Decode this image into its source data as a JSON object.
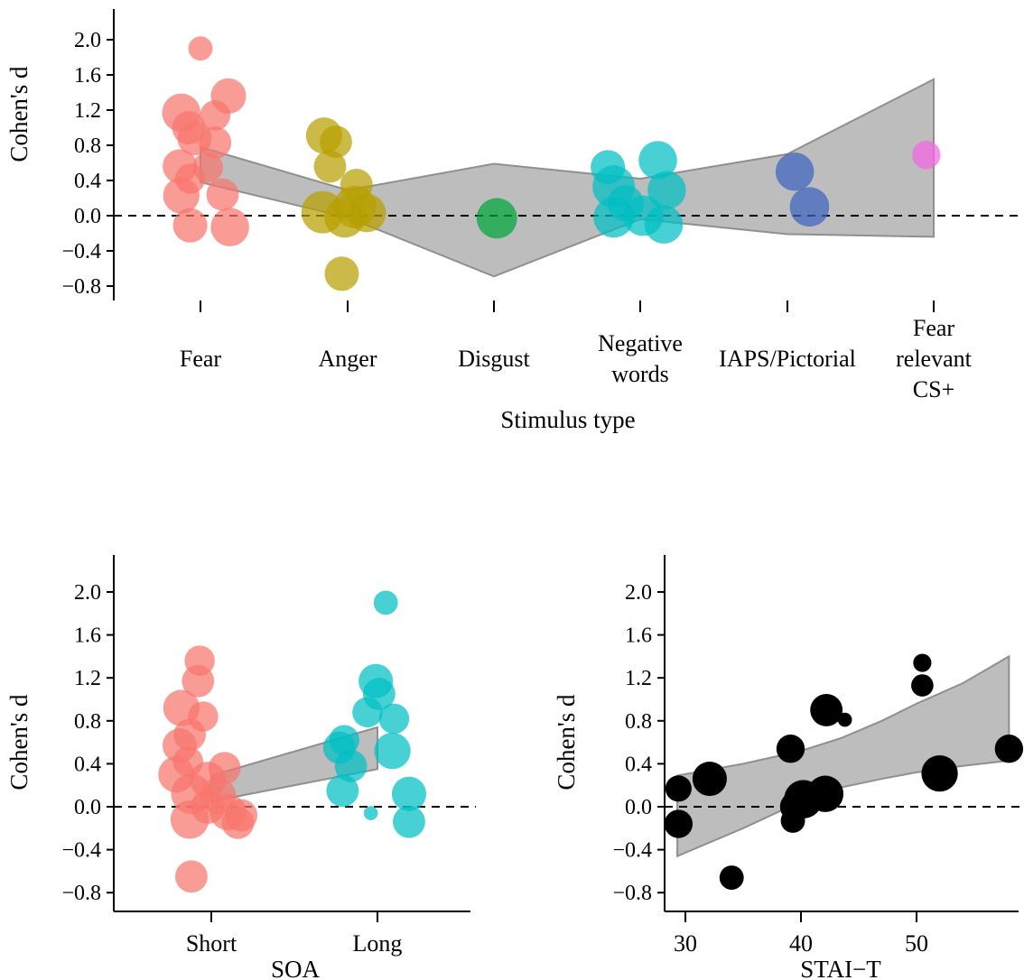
{
  "chart_data": [
    {
      "type": "scatter",
      "xlabel": "Stimulus type",
      "ylabel": "Cohen's d",
      "ylim": [
        -0.9,
        2.2
      ],
      "yticks": [
        "2.0",
        "1.6",
        "1.2",
        "0.8",
        "0.4",
        "0.0",
        "−0.4",
        "−0.8"
      ],
      "ytick_values": [
        2.0,
        1.6,
        1.2,
        0.8,
        0.4,
        0.0,
        -0.4,
        -0.8
      ],
      "categories": [
        {
          "lines": [
            "Fear"
          ]
        },
        {
          "lines": [
            "Anger"
          ]
        },
        {
          "lines": [
            "Disgust"
          ]
        },
        {
          "lines": [
            "Negative",
            "words"
          ]
        },
        {
          "lines": [
            "IAPS/Pictorial"
          ]
        },
        {
          "lines": [
            "Fear",
            "relevant",
            "CS+"
          ]
        }
      ],
      "colors": [
        "#F8766D",
        "#B79F00",
        "#00A63A",
        "#00BFC4",
        "#3F62C0",
        "#F564E3"
      ],
      "reference_line": 0.0,
      "band": {
        "upper": [
          0.78,
          0.29,
          0.59,
          0.42,
          0.7,
          1.55
        ],
        "lower": [
          0.38,
          -0.02,
          -0.69,
          -0.04,
          -0.21,
          -0.24
        ]
      },
      "points": [
        {
          "cat": 0,
          "dx": 0.0,
          "y": 1.9,
          "size": 2.4
        },
        {
          "cat": 0,
          "dx": 0.19,
          "y": 1.36,
          "size": 3.5
        },
        {
          "cat": 0,
          "dx": -0.13,
          "y": 1.17,
          "size": 3.8
        },
        {
          "cat": 0,
          "dx": 0.1,
          "y": 1.14,
          "size": 3.0
        },
        {
          "cat": 0,
          "dx": -0.08,
          "y": 1.0,
          "size": 3.3
        },
        {
          "cat": 0,
          "dx": -0.04,
          "y": 0.88,
          "size": 3.4
        },
        {
          "cat": 0,
          "dx": 0.1,
          "y": 0.83,
          "size": 3.2
        },
        {
          "cat": 0,
          "dx": -0.14,
          "y": 0.56,
          "size": 3.4
        },
        {
          "cat": 0,
          "dx": 0.05,
          "y": 0.55,
          "size": 3.0
        },
        {
          "cat": 0,
          "dx": -0.07,
          "y": 0.42,
          "size": 3.0
        },
        {
          "cat": 0,
          "dx": -0.13,
          "y": 0.23,
          "size": 3.6
        },
        {
          "cat": 0,
          "dx": 0.15,
          "y": 0.24,
          "size": 3.2
        },
        {
          "cat": 0,
          "dx": -0.07,
          "y": -0.11,
          "size": 3.4
        },
        {
          "cat": 0,
          "dx": 0.2,
          "y": -0.13,
          "size": 3.8
        },
        {
          "cat": 1,
          "dx": -0.16,
          "y": 0.91,
          "size": 3.6
        },
        {
          "cat": 1,
          "dx": -0.08,
          "y": 0.84,
          "size": 3.2
        },
        {
          "cat": 1,
          "dx": -0.12,
          "y": 0.56,
          "size": 3.2
        },
        {
          "cat": 1,
          "dx": 0.06,
          "y": 0.35,
          "size": 3.2
        },
        {
          "cat": 1,
          "dx": -0.17,
          "y": 0.04,
          "size": 4.2
        },
        {
          "cat": 1,
          "dx": 0.05,
          "y": 0.1,
          "size": 4.2
        },
        {
          "cat": 1,
          "dx": 0.13,
          "y": 0.03,
          "size": 3.8
        },
        {
          "cat": 1,
          "dx": -0.02,
          "y": -0.02,
          "size": 4.0
        },
        {
          "cat": 1,
          "dx": -0.04,
          "y": -0.66,
          "size": 3.4
        },
        {
          "cat": 2,
          "dx": 0.02,
          "y": -0.03,
          "size": 4.0
        },
        {
          "cat": 3,
          "dx": -0.22,
          "y": 0.55,
          "size": 3.4
        },
        {
          "cat": 3,
          "dx": 0.12,
          "y": 0.63,
          "size": 3.8
        },
        {
          "cat": 3,
          "dx": -0.18,
          "y": 0.33,
          "size": 4.2
        },
        {
          "cat": 3,
          "dx": 0.18,
          "y": 0.29,
          "size": 3.8
        },
        {
          "cat": 3,
          "dx": -0.1,
          "y": 0.14,
          "size": 3.6
        },
        {
          "cat": 3,
          "dx": -0.18,
          "y": -0.02,
          "size": 4.0
        },
        {
          "cat": 3,
          "dx": 0.02,
          "y": 0.0,
          "size": 4.0
        },
        {
          "cat": 3,
          "dx": 0.16,
          "y": -0.1,
          "size": 3.8
        },
        {
          "cat": 4,
          "dx": 0.05,
          "y": 0.5,
          "size": 3.8
        },
        {
          "cat": 4,
          "dx": 0.15,
          "y": 0.1,
          "size": 3.9
        },
        {
          "cat": 5,
          "dx": -0.05,
          "y": 0.69,
          "size": 2.8
        }
      ]
    },
    {
      "type": "scatter",
      "xlabel": "SOA",
      "ylabel": "Cohen's d",
      "ylim": [
        -0.9,
        2.2
      ],
      "yticks": [
        "2.0",
        "1.6",
        "1.2",
        "0.8",
        "0.4",
        "0.0",
        "−0.4",
        "−0.8"
      ],
      "ytick_values": [
        2.0,
        1.6,
        1.2,
        0.8,
        0.4,
        0.0,
        -0.4,
        -0.8
      ],
      "categories": [
        {
          "lines": [
            "Short"
          ]
        },
        {
          "lines": [
            "Long"
          ]
        }
      ],
      "colors": [
        "#F8766D",
        "#00BFC4"
      ],
      "reference_line": 0.0,
      "band": {
        "upper": [
          0.29,
          0.74
        ],
        "lower": [
          0.05,
          0.35
        ]
      },
      "points": [
        {
          "cat": 0,
          "dx": -0.07,
          "y": 1.36,
          "size": 3.0
        },
        {
          "cat": 0,
          "dx": -0.08,
          "y": 1.17,
          "size": 3.2
        },
        {
          "cat": 0,
          "dx": -0.18,
          "y": 0.92,
          "size": 3.6
        },
        {
          "cat": 0,
          "dx": -0.05,
          "y": 0.84,
          "size": 3.0
        },
        {
          "cat": 0,
          "dx": -0.13,
          "y": 0.67,
          "size": 3.2
        },
        {
          "cat": 0,
          "dx": -0.19,
          "y": 0.57,
          "size": 3.4
        },
        {
          "cat": 0,
          "dx": -0.14,
          "y": 0.42,
          "size": 3.0
        },
        {
          "cat": 0,
          "dx": 0.08,
          "y": 0.36,
          "size": 3.2
        },
        {
          "cat": 0,
          "dx": -0.21,
          "y": 0.3,
          "size": 3.6
        },
        {
          "cat": 0,
          "dx": -0.02,
          "y": 0.25,
          "size": 3.6
        },
        {
          "cat": 0,
          "dx": -0.12,
          "y": 0.12,
          "size": 4.0
        },
        {
          "cat": 0,
          "dx": 0.04,
          "y": 0.1,
          "size": 3.6
        },
        {
          "cat": 0,
          "dx": -0.02,
          "y": 0.0,
          "size": 3.4
        },
        {
          "cat": 0,
          "dx": 0.1,
          "y": -0.05,
          "size": 3.6
        },
        {
          "cat": 0,
          "dx": 0.18,
          "y": -0.08,
          "size": 3.2
        },
        {
          "cat": 0,
          "dx": -0.13,
          "y": -0.12,
          "size": 3.8
        },
        {
          "cat": 0,
          "dx": 0.16,
          "y": -0.15,
          "size": 3.2
        },
        {
          "cat": 0,
          "dx": -0.12,
          "y": -0.65,
          "size": 3.2
        },
        {
          "cat": 1,
          "dx": 0.05,
          "y": 1.9,
          "size": 2.4
        },
        {
          "cat": 1,
          "dx": -0.01,
          "y": 1.17,
          "size": 3.4
        },
        {
          "cat": 1,
          "dx": 0.01,
          "y": 1.05,
          "size": 3.2
        },
        {
          "cat": 1,
          "dx": -0.06,
          "y": 0.88,
          "size": 3.0
        },
        {
          "cat": 1,
          "dx": 0.1,
          "y": 0.82,
          "size": 3.0
        },
        {
          "cat": 1,
          "dx": -0.2,
          "y": 0.62,
          "size": 3.0
        },
        {
          "cat": 1,
          "dx": -0.23,
          "y": 0.55,
          "size": 3.2
        },
        {
          "cat": 1,
          "dx": 0.09,
          "y": 0.52,
          "size": 3.6
        },
        {
          "cat": 1,
          "dx": -0.16,
          "y": 0.38,
          "size": 3.2
        },
        {
          "cat": 1,
          "dx": -0.21,
          "y": 0.15,
          "size": 3.2
        },
        {
          "cat": 1,
          "dx": 0.19,
          "y": 0.12,
          "size": 3.4
        },
        {
          "cat": 1,
          "dx": -0.04,
          "y": -0.06,
          "size": 1.4
        },
        {
          "cat": 1,
          "dx": 0.19,
          "y": -0.14,
          "size": 3.2
        }
      ]
    },
    {
      "type": "scatter",
      "xlabel": "STAI−T",
      "ylabel": "Cohen's d",
      "xlim": [
        28.2,
        59.3
      ],
      "xticks": [
        30,
        40,
        50
      ],
      "ylim": [
        -0.9,
        2.2
      ],
      "yticks": [
        "2.0",
        "1.6",
        "1.2",
        "0.8",
        "0.4",
        "0.0",
        "−0.4",
        "−0.8"
      ],
      "ytick_values": [
        2.0,
        1.6,
        1.2,
        0.8,
        0.4,
        0.0,
        -0.4,
        -0.8
      ],
      "color": "#000000",
      "reference_line": 0.0,
      "band": {
        "x": [
          29.3,
          35,
          40,
          43.5,
          47,
          50,
          54,
          58
        ],
        "upper": [
          0.29,
          0.4,
          0.52,
          0.64,
          0.8,
          0.96,
          1.15,
          1.4
        ],
        "lower": [
          -0.46,
          -0.2,
          0.05,
          0.18,
          0.26,
          0.32,
          0.38,
          0.43
        ]
      },
      "points": [
        {
          "x": 50.5,
          "y": 1.34,
          "size": 1.8
        },
        {
          "x": 50.5,
          "y": 1.13,
          "size": 2.2
        },
        {
          "x": 42.2,
          "y": 0.9,
          "size": 3.2
        },
        {
          "x": 43.8,
          "y": 0.81,
          "size": 1.4
        },
        {
          "x": 39.1,
          "y": 0.54,
          "size": 2.8
        },
        {
          "x": 58.0,
          "y": 0.54,
          "size": 2.8
        },
        {
          "x": 32.1,
          "y": 0.26,
          "size": 3.4
        },
        {
          "x": 29.4,
          "y": 0.17,
          "size": 2.6
        },
        {
          "x": 52.0,
          "y": 0.31,
          "size": 3.6
        },
        {
          "x": 42.1,
          "y": 0.12,
          "size": 3.6
        },
        {
          "x": 40.2,
          "y": 0.07,
          "size": 3.8
        },
        {
          "x": 39.5,
          "y": 0.0,
          "size": 3.0
        },
        {
          "x": 39.3,
          "y": -0.13,
          "size": 2.4
        },
        {
          "x": 29.4,
          "y": -0.16,
          "size": 2.8
        },
        {
          "x": 34.0,
          "y": -0.66,
          "size": 2.4
        }
      ]
    }
  ]
}
